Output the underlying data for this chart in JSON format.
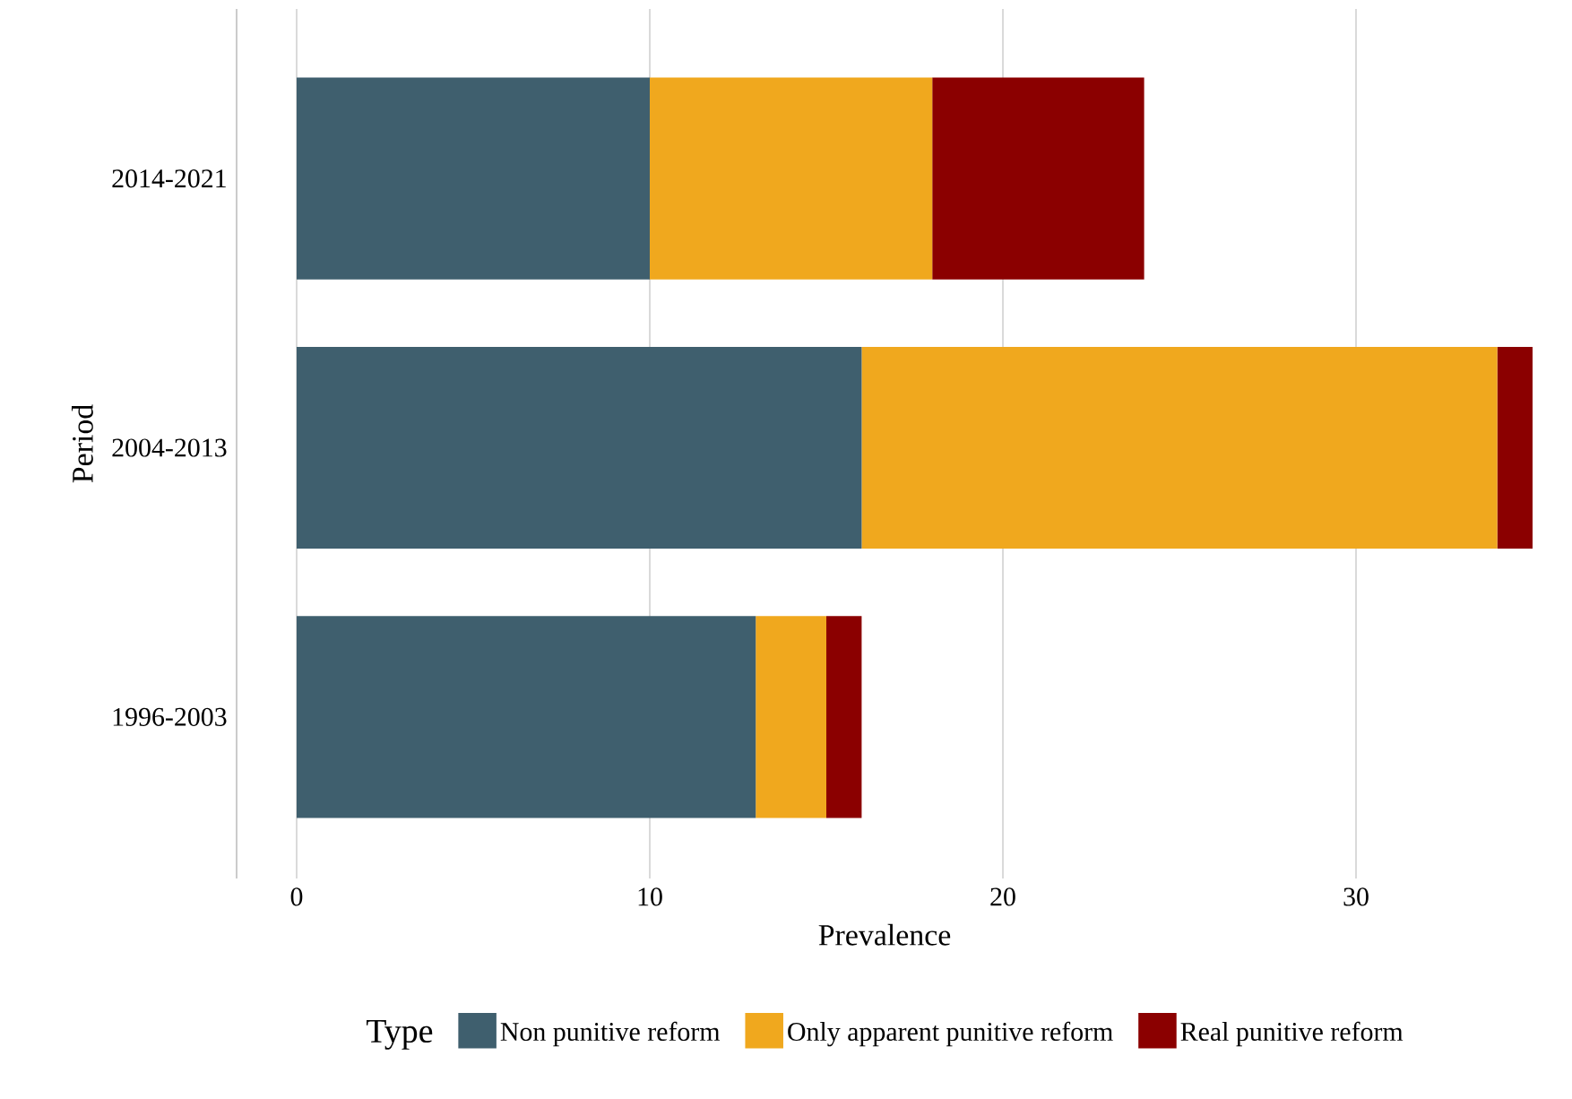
{
  "chart_data": {
    "type": "bar",
    "orientation": "horizontal",
    "stacked": true,
    "xlabel": "Prevalence",
    "ylabel": "Period",
    "legend_title": "Type",
    "categories": [
      "2014-2021",
      "2004-2013",
      "1996-2003"
    ],
    "series": [
      {
        "name": "Non punitive reform",
        "color": "#3f5f6e",
        "values": [
          10,
          16,
          13
        ]
      },
      {
        "name": "Only apparent punitive reform",
        "color": "#f0a81e",
        "values": [
          8,
          18,
          2
        ]
      },
      {
        "name": "Real punitive reform",
        "color": "#8b0000",
        "values": [
          6,
          1,
          1
        ]
      }
    ],
    "xlim": [
      -1.7,
      35
    ],
    "xticks": [
      0,
      10,
      20,
      30
    ],
    "grid": "x",
    "legend": "bottom"
  }
}
